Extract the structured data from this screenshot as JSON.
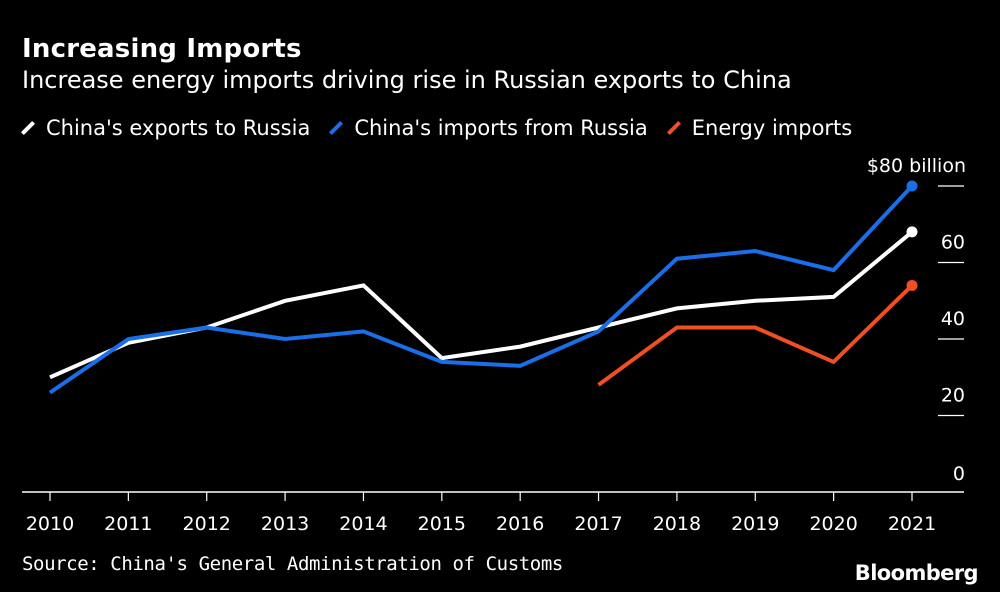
{
  "title": "Increasing Imports",
  "subtitle": "Increase energy imports driving rise in Russian exports to China",
  "source": "Source: China's General Administration of Customs",
  "brand": "Bloomberg",
  "chart_data": {
    "type": "line",
    "x": [
      2010,
      2011,
      2012,
      2013,
      2014,
      2015,
      2016,
      2017,
      2018,
      2019,
      2020,
      2021
    ],
    "ylim": [
      0,
      80
    ],
    "yticks": [
      0,
      20,
      40,
      60,
      80
    ],
    "ytick_labels": [
      "0",
      "20",
      "40",
      "60",
      "$80 billion"
    ],
    "series": [
      {
        "name": "China's exports to Russia",
        "color": "#ffffff",
        "values": [
          30,
          39,
          43,
          50,
          54,
          35,
          38,
          43,
          48,
          50,
          51,
          68
        ]
      },
      {
        "name": "China's imports from Russia",
        "color": "#1a6ee8",
        "values": [
          26,
          40,
          43,
          40,
          42,
          34,
          33,
          42,
          61,
          63,
          58,
          80
        ]
      },
      {
        "name": "Energy imports",
        "color": "#f04e23",
        "start_index": 7,
        "values": [
          null,
          null,
          null,
          null,
          null,
          null,
          null,
          28,
          43,
          43,
          34,
          54
        ]
      }
    ]
  }
}
